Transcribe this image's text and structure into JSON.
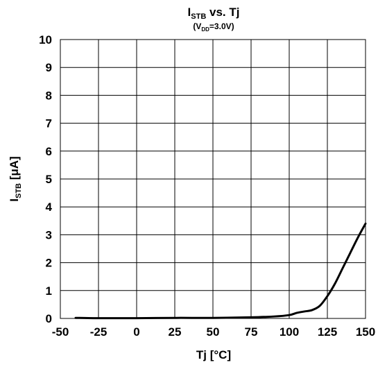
{
  "chart_data": {
    "type": "line",
    "title": {
      "main": "I",
      "main_sub": "STB",
      "main_rest": " vs. Tj",
      "sub_open": "(V",
      "sub_sub": "DD",
      "sub_rest": "=3.0V)"
    },
    "xlabel": "Tj [°C]",
    "ylabel": {
      "main": "I",
      "sub": "STB",
      "rest": " [μA]"
    },
    "xlim": [
      -50,
      150
    ],
    "ylim": [
      0,
      10
    ],
    "x_ticks": [
      -50,
      -25,
      0,
      25,
      50,
      75,
      100,
      125,
      150
    ],
    "y_ticks": [
      0,
      1,
      2,
      3,
      4,
      5,
      6,
      7,
      8,
      9,
      10
    ],
    "grid": true,
    "series": [
      {
        "color": "#000000",
        "x": [
          -40,
          -25,
          0,
          25,
          50,
          75,
          90,
          100,
          105,
          110,
          115,
          120,
          125,
          130,
          135,
          140,
          145,
          150
        ],
        "y": [
          0.02,
          0.01,
          0.01,
          0.02,
          0.02,
          0.04,
          0.07,
          0.12,
          0.2,
          0.25,
          0.3,
          0.45,
          0.8,
          1.25,
          1.8,
          2.35,
          2.9,
          3.4
        ]
      }
    ]
  }
}
